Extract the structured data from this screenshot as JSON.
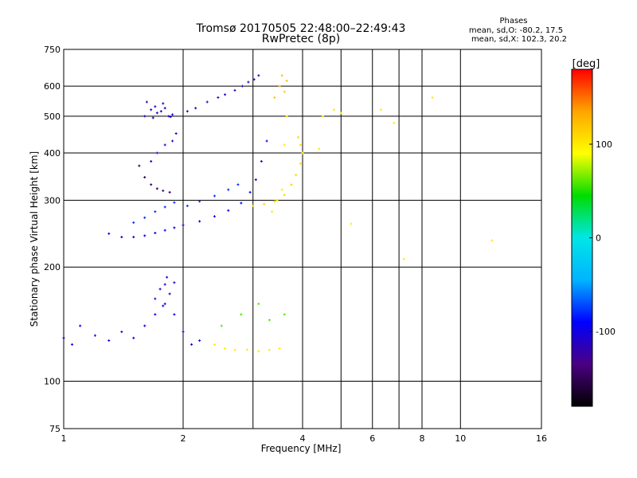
{
  "chart_data": {
    "type": "scatter",
    "title": "Tromsø 20170505 22:48:00–22:49:43",
    "subtitle": "RwPretec (8p)",
    "xlabel": "Frequency [MHz]",
    "ylabel": "Stationary phase Virtual Height [km]",
    "x_scale": "log",
    "y_scale": "log",
    "xlim": [
      1,
      16
    ],
    "ylim": [
      75,
      750
    ],
    "x_ticks": [
      1,
      2,
      4,
      6,
      8,
      10,
      16
    ],
    "x_grid": [
      2,
      3,
      4,
      5,
      6,
      7,
      8,
      10
    ],
    "y_ticks": [
      75,
      100,
      200,
      300,
      400,
      500,
      600,
      750
    ],
    "y_grid": [
      100,
      200,
      300,
      400,
      500,
      600
    ],
    "grid": true,
    "phase_box": {
      "title": "Phases",
      "line1": "mean, sd,O: -80.2, 17.5",
      "line2": "mean, sd,X: 102.3, 20.2"
    },
    "colorbar": {
      "label": "[deg]",
      "range": [
        -180,
        180
      ],
      "ticks": [
        100,
        0,
        -100
      ],
      "colors": [
        "#000000",
        "#4b0082",
        "#0000ff",
        "#00b4ff",
        "#00e6e6",
        "#00dc00",
        "#ffff00",
        "#ffa500",
        "#ff0000"
      ]
    },
    "series": [
      {
        "x": [
          1.6,
          1.66,
          1.72,
          1.78,
          1.84,
          1.88,
          1.8,
          1.68,
          1.62,
          1.7,
          1.76,
          1.86
        ],
        "y": [
          500,
          520,
          510,
          540,
          500,
          505,
          525,
          495,
          545,
          530,
          515,
          498
        ],
        "phase": -110
      },
      {
        "x": [
          2.05,
          2.15,
          2.3,
          2.45,
          2.55,
          2.7,
          2.82,
          2.92,
          3.02,
          3.1
        ],
        "y": [
          515,
          525,
          545,
          560,
          570,
          585,
          600,
          615,
          625,
          640
        ],
        "phase": -115
      },
      {
        "x": [
          1.55,
          1.6,
          1.66,
          1.72,
          1.78,
          1.85
        ],
        "y": [
          370,
          345,
          330,
          322,
          318,
          315
        ],
        "phase": -150
      },
      {
        "x": [
          1.66,
          1.72,
          1.8,
          1.88,
          1.92
        ],
        "y": [
          380,
          400,
          420,
          430,
          450
        ],
        "phase": -105
      },
      {
        "x": [
          1.3,
          1.4,
          1.5,
          1.6,
          1.7,
          1.8,
          1.9,
          2.0,
          2.2,
          2.4,
          2.6,
          2.8,
          2.95,
          3.05,
          3.15,
          3.25
        ],
        "y": [
          245,
          240,
          240,
          242,
          246,
          250,
          254,
          258,
          264,
          272,
          282,
          295,
          315,
          340,
          380,
          430
        ],
        "phase": -95
      },
      {
        "x": [
          1.5,
          1.6,
          1.7,
          1.8,
          1.9,
          2.05,
          2.2,
          2.4,
          2.6,
          2.75
        ],
        "y": [
          262,
          270,
          280,
          288,
          296,
          290,
          298,
          308,
          320,
          330
        ],
        "phase": -80
      },
      {
        "x": [
          3.0,
          3.2,
          3.4,
          3.6,
          3.75,
          3.85,
          3.95,
          4.0,
          3.95,
          3.9
        ],
        "y": [
          290,
          293,
          298,
          310,
          330,
          350,
          375,
          400,
          420,
          440
        ],
        "phase": 110
      },
      {
        "x": [
          3.35,
          3.45,
          3.55,
          3.6,
          3.65
        ],
        "y": [
          280,
          300,
          320,
          420,
          500
        ],
        "phase": 100
      },
      {
        "x": [
          3.4,
          3.5,
          3.55,
          3.6,
          3.65
        ],
        "y": [
          560,
          600,
          640,
          580,
          620
        ],
        "phase": 120
      },
      {
        "x": [
          1.0,
          1.05,
          1.1,
          1.2,
          1.3,
          1.4,
          1.5,
          1.6,
          1.7,
          1.8,
          1.9,
          2.0,
          2.1,
          2.2
        ],
        "y": [
          130,
          125,
          140,
          132,
          128,
          135,
          130,
          140,
          150,
          160,
          150,
          135,
          125,
          128
        ],
        "phase": -95
      },
      {
        "x": [
          1.7,
          1.75,
          1.8,
          1.85,
          1.9,
          1.78,
          1.82
        ],
        "y": [
          165,
          175,
          180,
          170,
          182,
          158,
          188
        ],
        "phase": -110
      },
      {
        "x": [
          2.4,
          2.55,
          2.7,
          2.9,
          3.1,
          3.3,
          3.5
        ],
        "y": [
          125,
          122,
          121,
          121,
          120,
          121,
          122
        ],
        "phase": 100
      },
      {
        "x": [
          2.5,
          2.8,
          3.1,
          3.3,
          3.6
        ],
        "y": [
          140,
          150,
          160,
          145,
          150
        ],
        "phase": 60
      },
      {
        "x": [
          4.5,
          4.8,
          5.0,
          6.3,
          6.8,
          7.2,
          8.5,
          12.0,
          5.3,
          4.4
        ],
        "y": [
          500,
          520,
          510,
          520,
          480,
          210,
          560,
          235,
          260,
          410
        ],
        "phase": 100
      }
    ]
  }
}
